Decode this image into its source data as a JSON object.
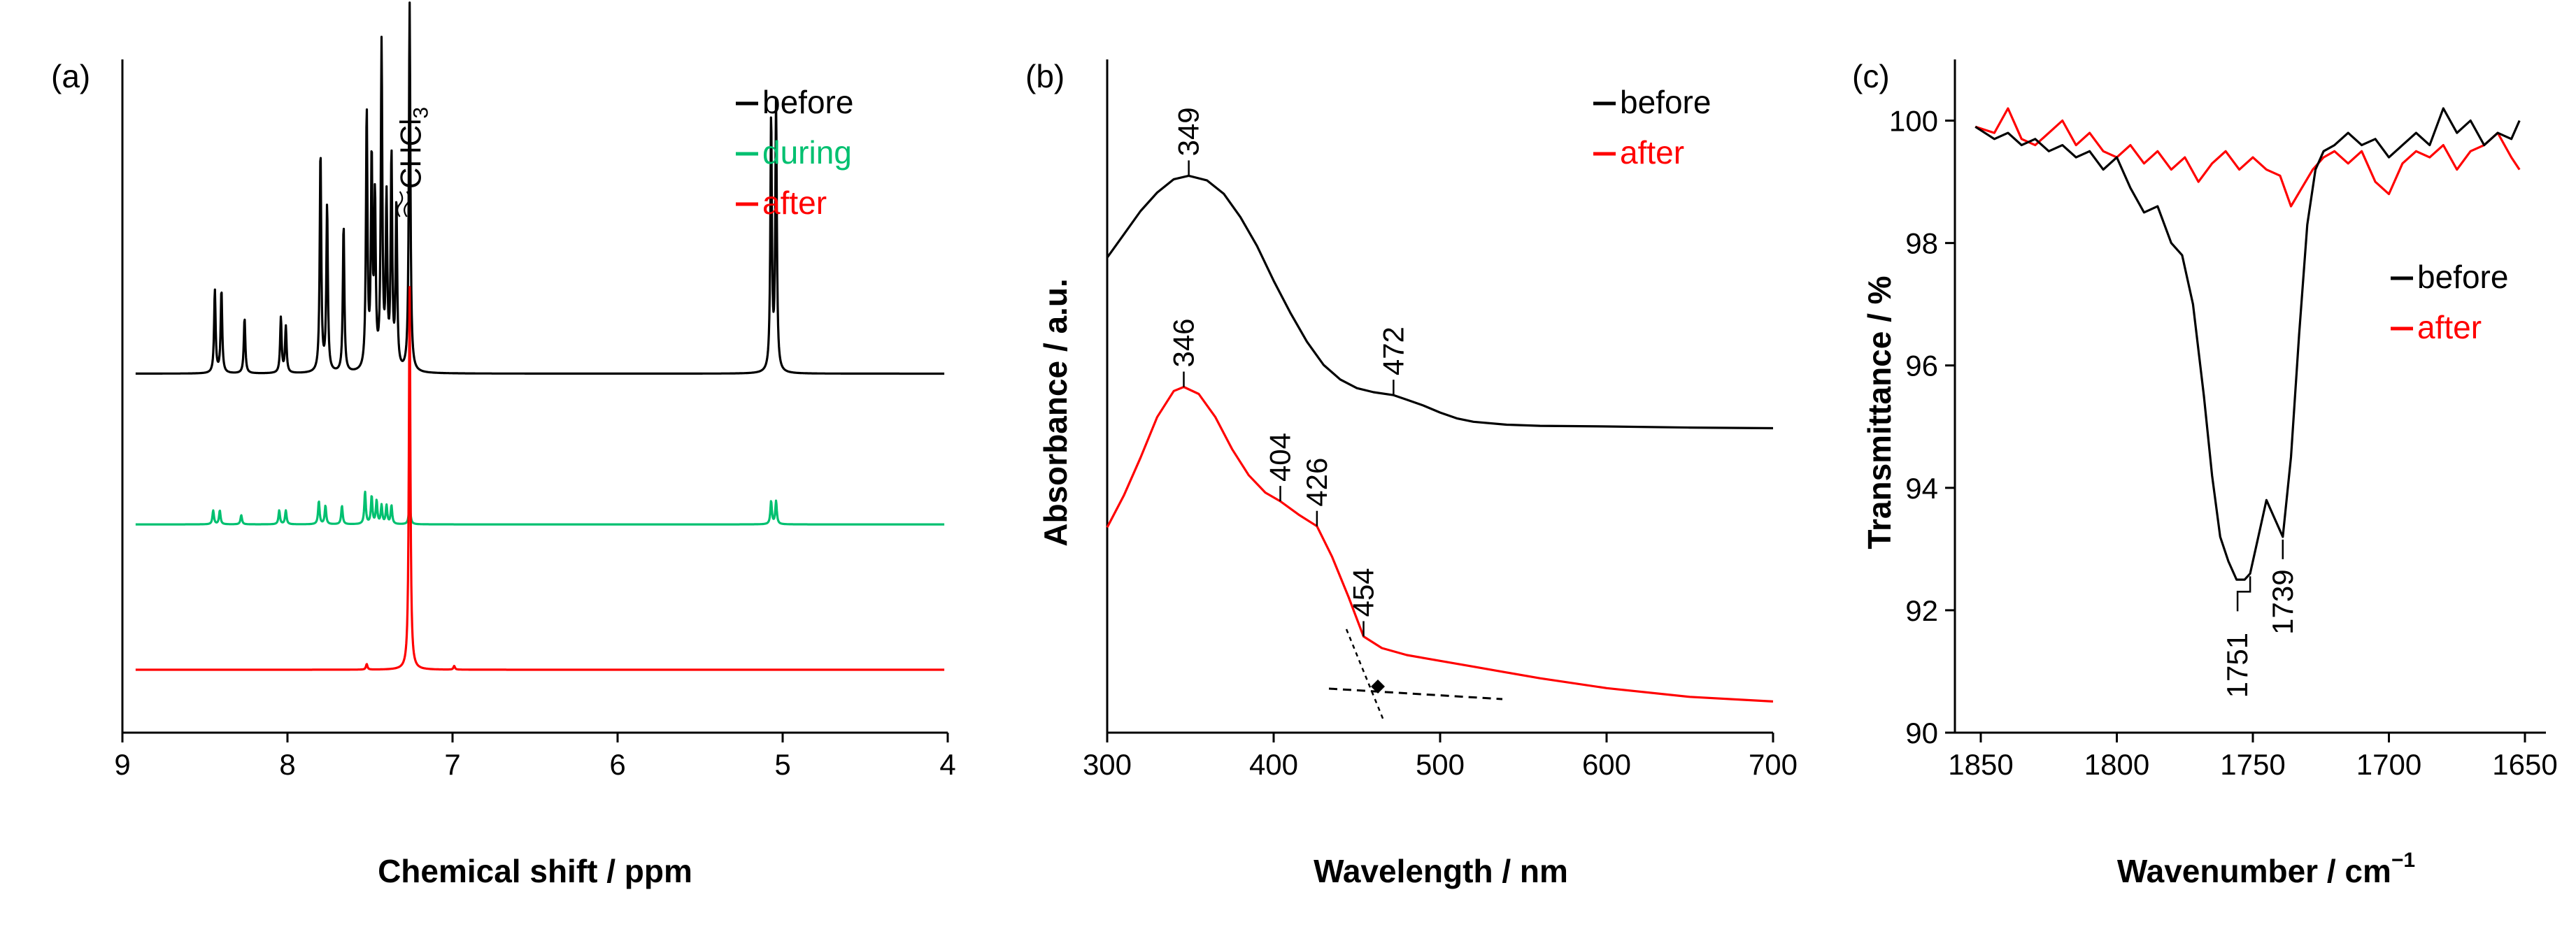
{
  "chart_data": [
    {
      "type": "line",
      "panel": "(a)",
      "title": "",
      "xlabel": "Chemical shift / ppm",
      "ylabel": "",
      "xlim": [
        9,
        4
      ],
      "xticks": [
        9,
        8,
        7,
        6,
        5,
        4
      ],
      "x_reversed": true,
      "series": [
        {
          "name": "before",
          "color": "#000000",
          "offset": 0.55,
          "peaks": [
            [
              8.44,
              0.18
            ],
            [
              8.4,
              0.18
            ],
            [
              8.26,
              0.12
            ],
            [
              8.04,
              0.12
            ],
            [
              8.01,
              0.1
            ],
            [
              7.8,
              0.48
            ],
            [
              7.76,
              0.36
            ],
            [
              7.66,
              0.32
            ],
            [
              7.52,
              0.56
            ],
            [
              7.49,
              0.45
            ],
            [
              7.47,
              0.36
            ],
            [
              7.43,
              0.7
            ],
            [
              7.4,
              0.36
            ],
            [
              7.37,
              0.46
            ],
            [
              7.34,
              0.36
            ],
            [
              7.26,
              0.8
            ],
            [
              5.07,
              0.55
            ],
            [
              5.04,
              0.58
            ]
          ]
        },
        {
          "name": "during",
          "color": "#00c070",
          "offset": 0.27,
          "peaks": [
            [
              8.45,
              0.03
            ],
            [
              8.41,
              0.03
            ],
            [
              8.28,
              0.02
            ],
            [
              8.05,
              0.03
            ],
            [
              8.01,
              0.03
            ],
            [
              7.81,
              0.05
            ],
            [
              7.77,
              0.04
            ],
            [
              7.67,
              0.04
            ],
            [
              7.53,
              0.07
            ],
            [
              7.49,
              0.06
            ],
            [
              7.46,
              0.05
            ],
            [
              7.43,
              0.04
            ],
            [
              7.4,
              0.04
            ],
            [
              7.37,
              0.04
            ],
            [
              7.26,
              0.05
            ],
            [
              5.07,
              0.05
            ],
            [
              5.04,
              0.05
            ]
          ]
        },
        {
          "name": "after",
          "color": "#ff0000",
          "offset": 0.0,
          "peaks": [
            [
              7.52,
              0.012
            ],
            [
              7.26,
              0.83
            ],
            [
              6.99,
              0.008
            ]
          ]
        }
      ],
      "annotations": [
        {
          "label": "CHCl",
          "sub": "3",
          "x": 7.26
        }
      ],
      "legend": [
        "before",
        "during",
        "after"
      ]
    },
    {
      "type": "line",
      "panel": "(b)",
      "title": "",
      "xlabel": "Wavelength / nm",
      "ylabel": "Absorbance / a.u.",
      "xlim": [
        300,
        700
      ],
      "xticks": [
        300,
        400,
        500,
        600,
        700
      ],
      "series": [
        {
          "name": "before",
          "color": "#000000",
          "x": [
            300,
            310,
            320,
            330,
            340,
            349,
            360,
            370,
            380,
            390,
            400,
            410,
            420,
            430,
            440,
            450,
            460,
            472,
            480,
            490,
            500,
            510,
            520,
            540,
            560,
            600,
            650,
            700
          ],
          "y": [
            0.785,
            0.825,
            0.865,
            0.897,
            0.92,
            0.926,
            0.918,
            0.895,
            0.855,
            0.805,
            0.745,
            0.69,
            0.64,
            0.6,
            0.575,
            0.56,
            0.553,
            0.548,
            0.54,
            0.53,
            0.518,
            0.508,
            0.502,
            0.497,
            0.495,
            0.494,
            0.492,
            0.491
          ]
        },
        {
          "name": "after",
          "color": "#ff0000",
          "x": [
            300,
            310,
            320,
            330,
            340,
            346,
            355,
            365,
            375,
            385,
            395,
            404,
            415,
            426,
            435,
            445,
            454,
            465,
            480,
            500,
            520,
            540,
            560,
            600,
            650,
            700
          ],
          "y": [
            0.32,
            0.375,
            0.44,
            0.51,
            0.555,
            0.562,
            0.55,
            0.51,
            0.455,
            0.41,
            0.38,
            0.365,
            0.342,
            0.322,
            0.27,
            0.2,
            0.132,
            0.112,
            0.1,
            0.09,
            0.08,
            0.07,
            0.06,
            0.043,
            0.028,
            0.02
          ]
        }
      ],
      "peak_labels": [
        {
          "label": "349",
          "x": 349,
          "series": "before"
        },
        {
          "label": "472",
          "x": 472,
          "series": "before"
        },
        {
          "label": "346",
          "x": 346,
          "series": "after"
        },
        {
          "label": "404",
          "x": 404,
          "series": "after"
        },
        {
          "label": "426",
          "x": 426,
          "series": "after"
        },
        {
          "label": "454",
          "x": 454,
          "series": "after"
        }
      ],
      "legend": [
        "before",
        "after"
      ]
    },
    {
      "type": "line",
      "panel": "(c)",
      "title": "",
      "xlabel": "Wavenumber / cm",
      "xlabel_sup": "−1",
      "ylabel": "Transmittance / %",
      "xlim": [
        1850,
        1650
      ],
      "ylim": [
        90,
        101
      ],
      "xticks": [
        1850,
        1800,
        1750,
        1700,
        1650
      ],
      "yticks": [
        90,
        92,
        94,
        96,
        98,
        100
      ],
      "x_reversed": true,
      "series": [
        {
          "name": "before",
          "color": "#000000",
          "x": [
            1852,
            1845,
            1840,
            1835,
            1830,
            1825,
            1820,
            1815,
            1810,
            1805,
            1800,
            1795,
            1790,
            1785,
            1780,
            1776,
            1772,
            1768,
            1765,
            1762,
            1759,
            1756,
            1753,
            1751,
            1748,
            1745,
            1742,
            1739,
            1736,
            1733,
            1730,
            1727,
            1724,
            1720,
            1715,
            1710,
            1705,
            1700,
            1695,
            1690,
            1685,
            1680,
            1675,
            1670,
            1665,
            1660,
            1655,
            1652
          ],
          "y": [
            99.9,
            99.7,
            99.8,
            99.6,
            99.7,
            99.5,
            99.6,
            99.4,
            99.5,
            99.2,
            99.4,
            98.9,
            98.5,
            98.6,
            98.0,
            97.8,
            97.0,
            95.5,
            94.2,
            93.2,
            92.8,
            92.5,
            92.5,
            92.6,
            93.2,
            93.8,
            93.5,
            93.2,
            94.5,
            96.5,
            98.3,
            99.2,
            99.5,
            99.6,
            99.8,
            99.6,
            99.7,
            99.4,
            99.6,
            99.8,
            99.6,
            100.2,
            99.8,
            100.0,
            99.6,
            99.8,
            99.7,
            100.0
          ]
        },
        {
          "name": "after",
          "color": "#ff0000",
          "x": [
            1852,
            1845,
            1840,
            1835,
            1830,
            1825,
            1820,
            1815,
            1810,
            1805,
            1800,
            1795,
            1790,
            1785,
            1780,
            1775,
            1770,
            1765,
            1760,
            1755,
            1750,
            1745,
            1740,
            1736,
            1732,
            1728,
            1724,
            1720,
            1715,
            1710,
            1705,
            1700,
            1695,
            1690,
            1685,
            1680,
            1675,
            1670,
            1665,
            1660,
            1655,
            1652
          ],
          "y": [
            99.9,
            99.8,
            100.2,
            99.7,
            99.6,
            99.8,
            100.0,
            99.6,
            99.8,
            99.5,
            99.4,
            99.6,
            99.3,
            99.5,
            99.2,
            99.4,
            99.0,
            99.3,
            99.5,
            99.2,
            99.4,
            99.2,
            99.1,
            98.6,
            98.9,
            99.2,
            99.4,
            99.5,
            99.3,
            99.5,
            99.0,
            98.8,
            99.3,
            99.5,
            99.4,
            99.6,
            99.2,
            99.5,
            99.6,
            99.8,
            99.4,
            99.2
          ]
        }
      ],
      "peak_labels": [
        {
          "label": "1751",
          "x": 1751
        },
        {
          "label": "1739",
          "x": 1739
        }
      ],
      "legend": [
        "before",
        "after"
      ]
    }
  ]
}
